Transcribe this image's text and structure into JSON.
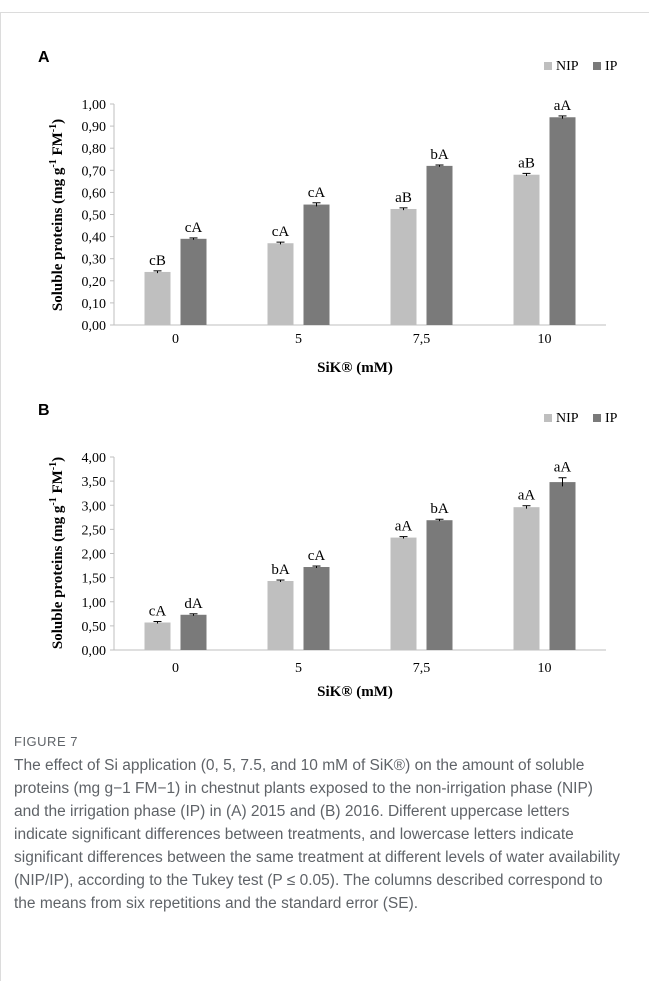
{
  "colors": {
    "NIP": "#bfbfbf",
    "IP": "#7a7a7a",
    "axis": "#bfbfbf",
    "text": "#000000"
  },
  "chart_data": [
    {
      "type": "bar",
      "panel_label": "A",
      "categories": [
        "0",
        "5",
        "7,5",
        "10"
      ],
      "series": [
        {
          "name": "NIP",
          "values": [
            0.24,
            0.37,
            0.525,
            0.68
          ],
          "errors": [
            0.005,
            0.005,
            0.005,
            0.006
          ],
          "labels": [
            "cB",
            "cA",
            "aB",
            "aB"
          ]
        },
        {
          "name": "IP",
          "values": [
            0.39,
            0.545,
            0.72,
            0.94
          ],
          "errors": [
            0.004,
            0.008,
            0.004,
            0.006
          ],
          "labels": [
            "cA",
            "cA",
            "bA",
            "aA"
          ]
        }
      ],
      "yticks": [
        "0,00",
        "0,10",
        "0,20",
        "0,30",
        "0,40",
        "0,50",
        "0,60",
        "0,70",
        "0,80",
        "0,90",
        "1,00"
      ],
      "ylim": [
        0,
        1.0
      ],
      "xlabel": "SiK® (mM)",
      "ylabel": "Soluble proteins (mg g-1 FM-1)",
      "ylabel_parts": {
        "main": "Soluble proteins (mg g",
        "sup1": "-1",
        "mid": " FM",
        "sup2": "-1",
        "end": ")"
      },
      "legend": "top-right",
      "grid": false
    },
    {
      "type": "bar",
      "panel_label": "B",
      "categories": [
        "0",
        "5",
        "7,5",
        "10"
      ],
      "series": [
        {
          "name": "NIP",
          "values": [
            0.57,
            1.43,
            2.33,
            2.96
          ],
          "errors": [
            0.02,
            0.02,
            0.02,
            0.03
          ],
          "labels": [
            "cA",
            "bA",
            "aA",
            "aA"
          ]
        },
        {
          "name": "IP",
          "values": [
            0.73,
            1.72,
            2.69,
            3.48
          ],
          "errors": [
            0.02,
            0.02,
            0.02,
            0.09
          ],
          "labels": [
            "dA",
            "cA",
            "bA",
            "aA"
          ]
        }
      ],
      "yticks": [
        "0,00",
        "0,50",
        "1,00",
        "1,50",
        "2,00",
        "2,50",
        "3,00",
        "3,50",
        "4,00"
      ],
      "ylim": [
        0,
        4.0
      ],
      "xlabel": "SiK® (mM)",
      "ylabel": "Soluble proteins (mg g-1 FM-1)",
      "ylabel_parts": {
        "main": "Soluble proteins (mg g",
        "sup1": "-1",
        "mid": " FM",
        "sup2": "-1",
        "end": ")"
      },
      "legend": "top-right",
      "grid": false
    }
  ],
  "caption": {
    "label": "FIGURE 7",
    "text": "The effect of Si application (0, 5, 7.5, and 10 mM of SiK®) on the amount of soluble proteins (mg g−1 FM−1) in chestnut plants exposed to the non-irrigation phase (NIP) and the irrigation phase (IP) in (A) 2015 and (B) 2016. Different uppercase letters indicate significant differences between treatments, and lowercase letters indicate significant differences between the same treatment at different levels of water availability (NIP/IP), according to the Tukey test (P ≤ 0.05). The columns described correspond to the means from six repetitions and the standard error (SE)."
  }
}
